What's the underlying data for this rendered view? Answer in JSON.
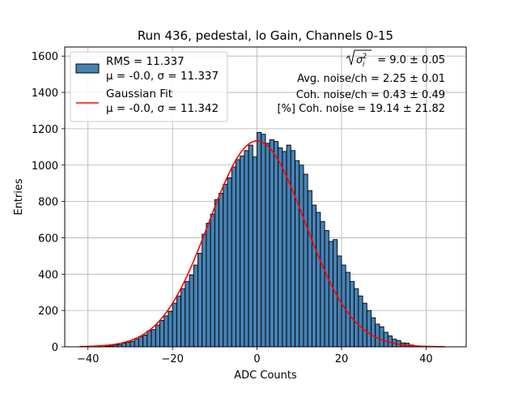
{
  "chart_data": {
    "type": "bar",
    "title": "Run 436, pedestal, lo Gain, Channels 0-15",
    "xlabel": "ADC Counts",
    "ylabel": "Entries",
    "xlim": [
      -45.5,
      49.5
    ],
    "ylim": [
      0,
      1650
    ],
    "xticks": [
      -40,
      -20,
      0,
      20,
      40
    ],
    "xtick_labels": [
      "−40",
      "−20",
      "0",
      "20",
      "40"
    ],
    "yticks": [
      0,
      200,
      400,
      600,
      800,
      1000,
      1200,
      1400,
      1600
    ],
    "grid": true,
    "legend_placement": "top-left",
    "colors": {
      "bars": "#4682b4",
      "bar_edge": "#000000",
      "fit": "#ff0000"
    },
    "bin_width": 1,
    "bin_lefts": [
      -36,
      -35,
      -34,
      -33,
      -32,
      -31,
      -30,
      -29,
      -28,
      -27,
      -26,
      -25,
      -24,
      -23,
      -22,
      -21,
      -20,
      -19,
      -18,
      -17,
      -16,
      -15,
      -14,
      -13,
      -12,
      -11,
      -10,
      -9,
      -8,
      -7,
      -6,
      -5,
      -4,
      -3,
      -2,
      -1,
      0,
      1,
      2,
      3,
      4,
      5,
      6,
      7,
      8,
      9,
      10,
      11,
      12,
      13,
      14,
      15,
      16,
      17,
      18,
      19,
      20,
      21,
      22,
      23,
      24,
      25,
      26,
      27,
      28,
      29,
      30,
      31,
      32,
      33,
      34,
      35,
      36,
      37
    ],
    "values": [
      3,
      5,
      10,
      12,
      20,
      25,
      30,
      42,
      55,
      65,
      88,
      95,
      120,
      145,
      170,
      195,
      240,
      280,
      320,
      360,
      395,
      450,
      515,
      620,
      680,
      730,
      810,
      845,
      895,
      930,
      990,
      1030,
      1050,
      1080,
      1110,
      1045,
      1180,
      1170,
      1120,
      1140,
      1130,
      1095,
      1075,
      1110,
      1080,
      1025,
      1000,
      950,
      860,
      780,
      740,
      690,
      640,
      580,
      590,
      500,
      450,
      410,
      360,
      320,
      280,
      240,
      200,
      160,
      125,
      110,
      80,
      60,
      42,
      35,
      22,
      20,
      10,
      5
    ],
    "series": [
      {
        "name": "RMS = 11.337",
        "name_line2": "μ = -0.0, σ = 11.337"
      },
      {
        "name": "Gaussian Fit",
        "name_line2": "μ = -0.0, σ = 11.342",
        "mu": 0.0,
        "sigma": 11.342,
        "amplitude": 1133,
        "x_range": [
          -42,
          44.5
        ]
      }
    ],
    "annotations": [
      "= 9.0 ± 0.05",
      "Avg. noise/ch = 2.25 ± 0.01",
      "Coh. noise/ch = 0.43 ± 0.49",
      "[%] Coh. noise = 19.14 ± 21.82"
    ]
  }
}
